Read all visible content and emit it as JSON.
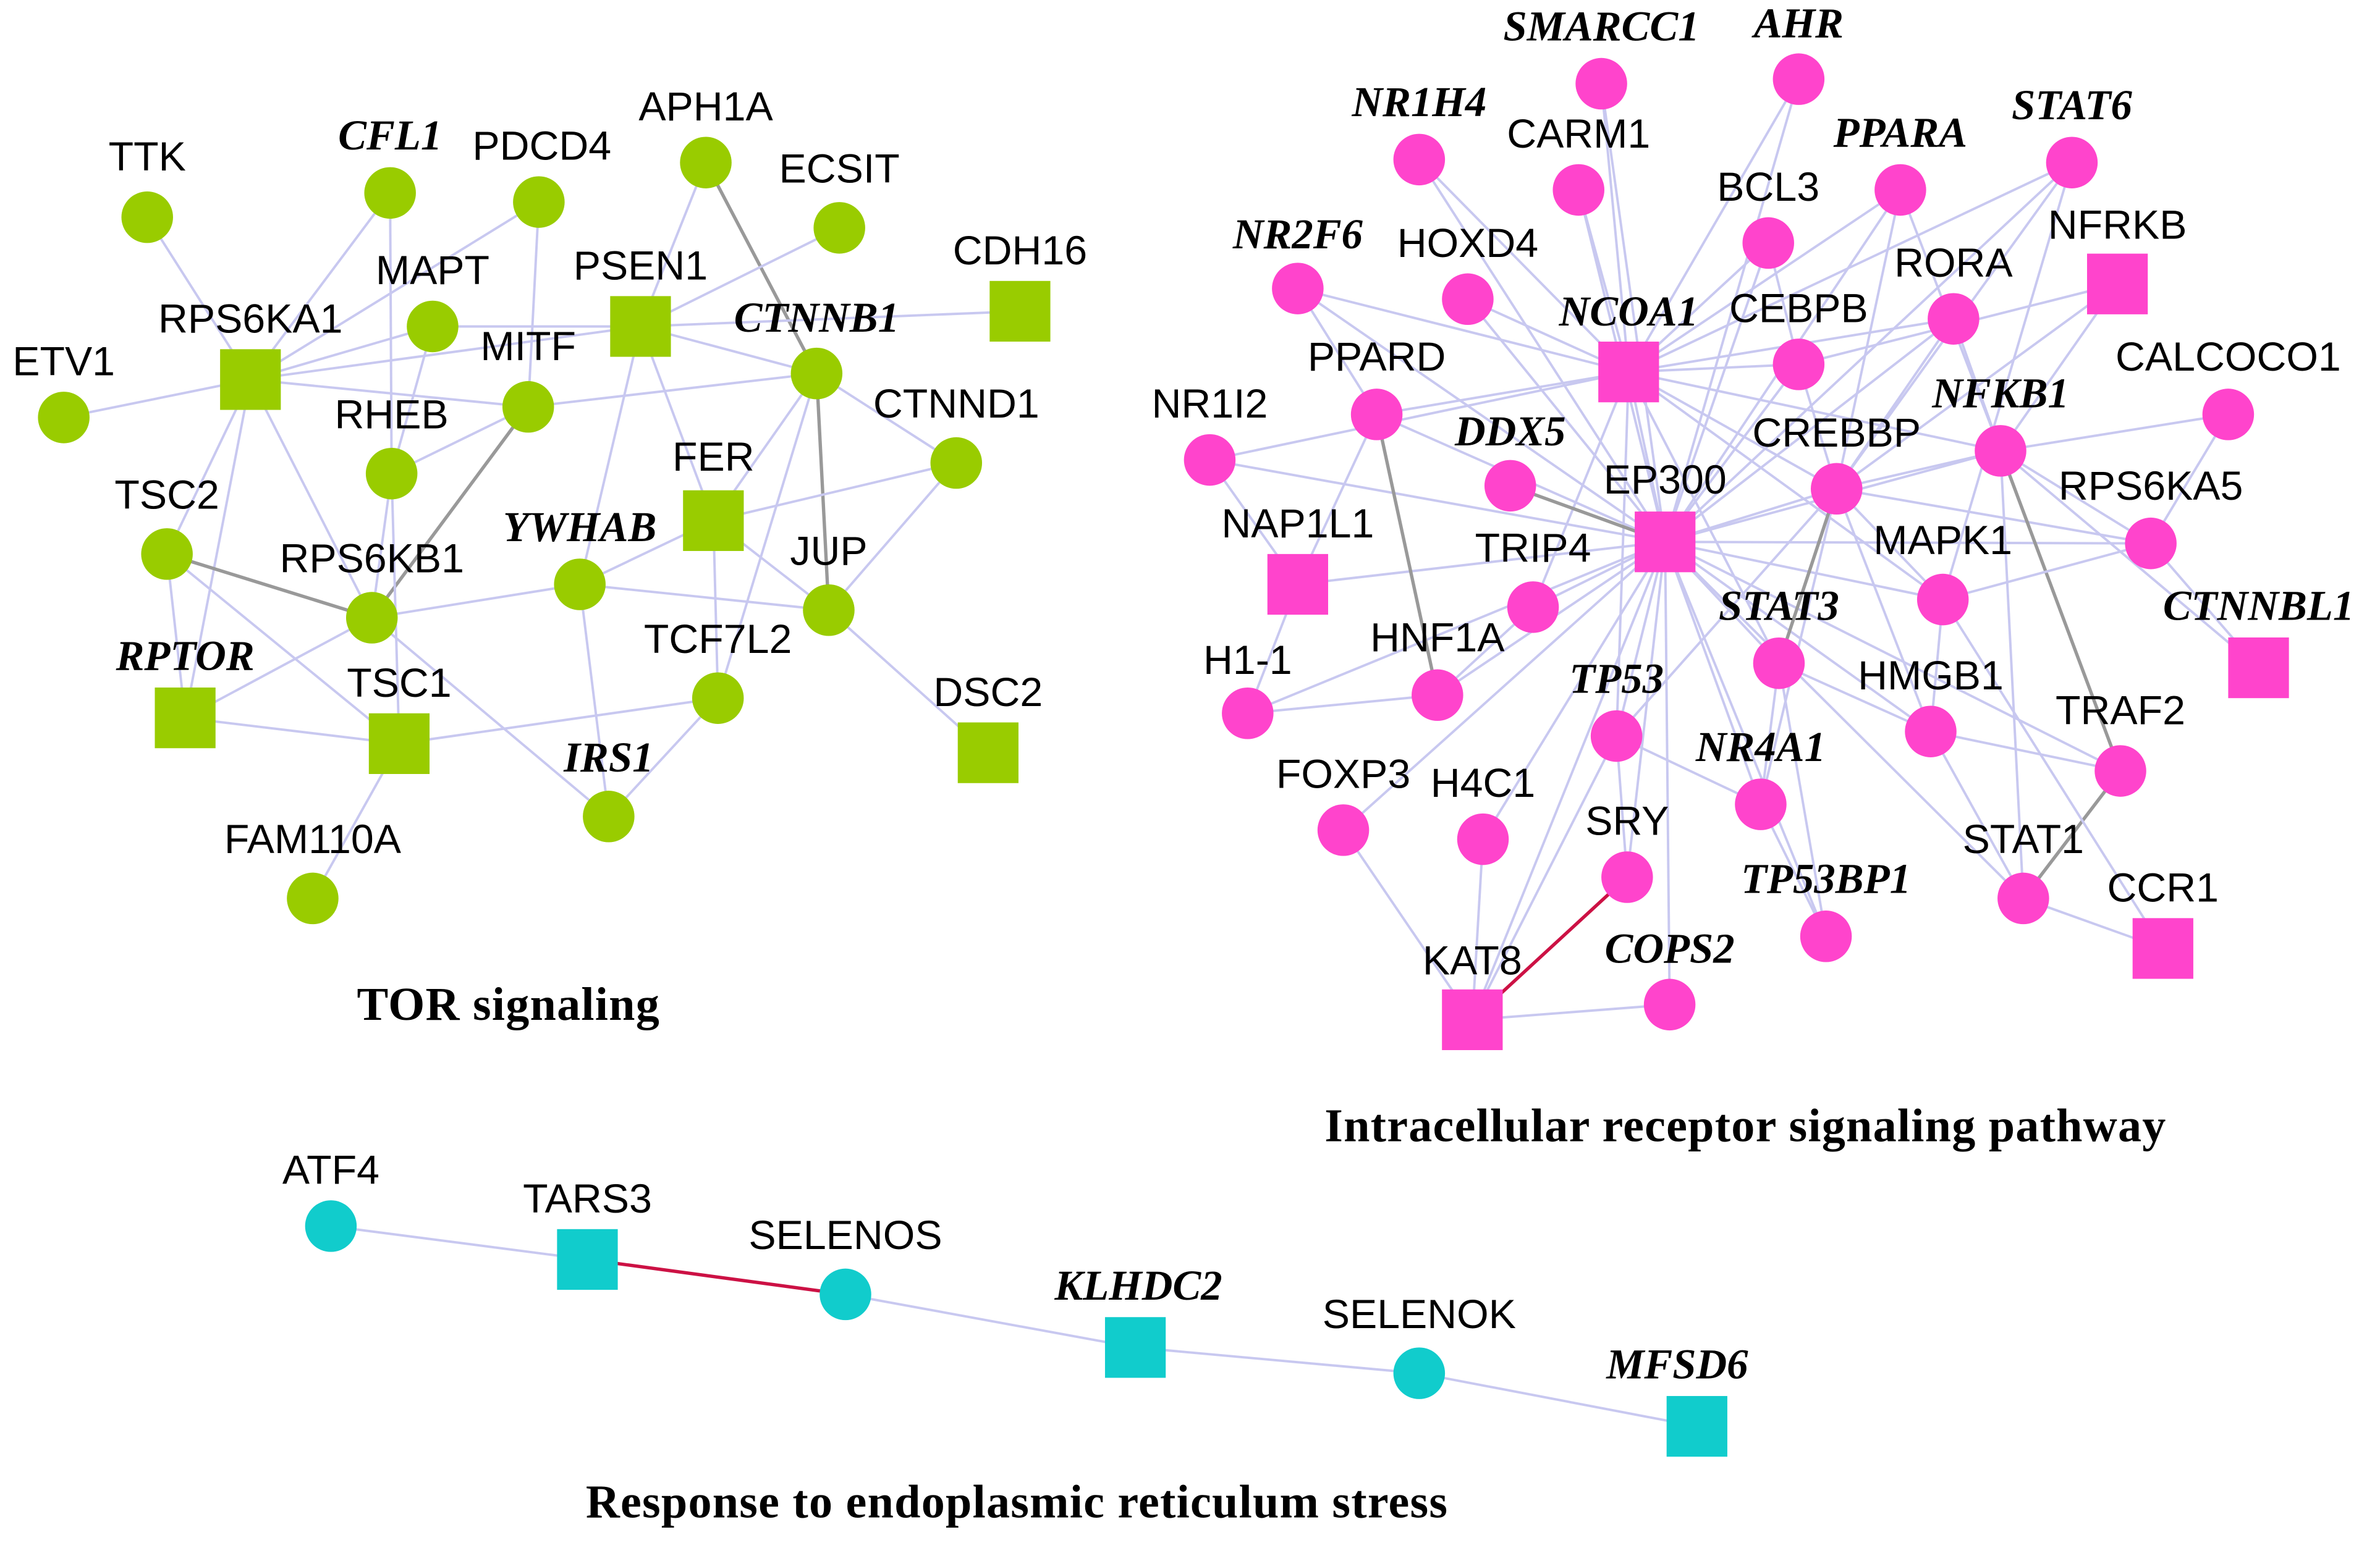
{
  "networks": [
    {
      "title": "TOR signaling",
      "nodes": [
        "TTK",
        "CFL1",
        "PDCD4",
        "APH1A",
        "ECSIT",
        "CDH16",
        "RPS6KA1",
        "MAPT",
        "PSEN1",
        "CTNNB1",
        "ETV1",
        "MITF",
        "RHEB",
        "CTNND1",
        "FER",
        "TSC2",
        "YWHAB",
        "RPS6KB1",
        "JUP",
        "RPTOR",
        "TSC1",
        "TCF7L2",
        "DSC2",
        "IRS1",
        "FAM110A"
      ]
    },
    {
      "title": "Intracellular receptor signaling pathway",
      "nodes": [
        "SMARCC1",
        "AHR",
        "NR1H4",
        "CARM1",
        "PPARA",
        "STAT6",
        "BCL3",
        "NFRKB",
        "NR2F6",
        "HOXD4",
        "NCOA1",
        "CEBPB",
        "RORA",
        "CALCOCO1",
        "PPARD",
        "NR1I2",
        "NFKB1",
        "DDX5",
        "CREBBP",
        "EP300",
        "RPS6KA5",
        "NAP1L1",
        "TRIP4",
        "MAPK1",
        "STAT3",
        "CTNNBL1",
        "H1-1",
        "HNF1A",
        "HMGB1",
        "TRAF2",
        "TP53",
        "NR4A1",
        "FOXP3",
        "H4C1",
        "SRY",
        "STAT1",
        "TP53BP1",
        "CCR1",
        "KAT8",
        "COPS2"
      ]
    },
    {
      "title": "Response to endoplasmic reticulum stress",
      "nodes": [
        "ATF4",
        "TARS3",
        "SELENOS",
        "KLHDC2",
        "SELENOK",
        "MFSD6"
      ]
    }
  ]
}
